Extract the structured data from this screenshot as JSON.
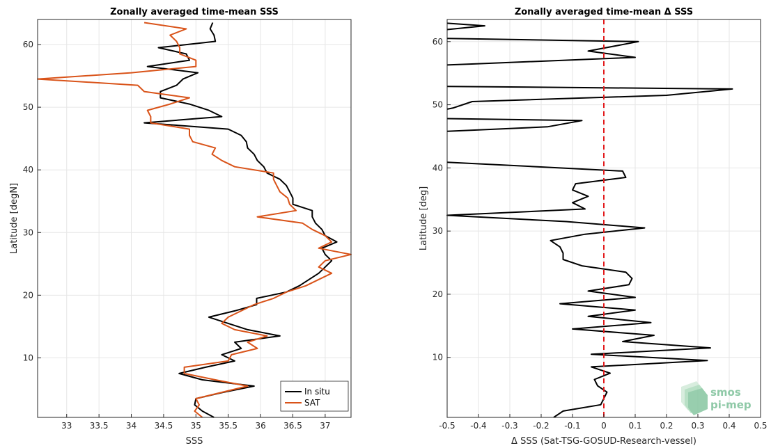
{
  "colors": {
    "insitu": "#000000",
    "sat": "#d95319",
    "zero_line": "#e31a1c",
    "grid": "#e6e6e6",
    "axis": "#262626",
    "logo": "#8fc9a7"
  },
  "logo": {
    "line1": "smos",
    "line2": "pi-mep",
    "icon": "layered-sheets-icon"
  },
  "chart_data": [
    {
      "type": "line",
      "title": "Zonally averaged time-mean SSS",
      "xlabel": "SSS",
      "ylabel": "Latitude [degN]",
      "xlim": [
        32.55,
        37.4
      ],
      "ylim": [
        0.5,
        64
      ],
      "xticks": [
        33,
        33.5,
        34,
        34.5,
        35,
        35.5,
        36,
        36.5,
        37
      ],
      "xtick_labels": [
        "33",
        "33.5",
        "34",
        "34.5",
        "35",
        "35.5",
        "36",
        "36.5",
        "37"
      ],
      "yticks": [
        10,
        20,
        30,
        40,
        50,
        60
      ],
      "ytick_labels": [
        "10",
        "20",
        "30",
        "40",
        "50",
        "60"
      ],
      "grid": true,
      "legend_position": "bottom-right",
      "series": [
        {
          "name": "In situ",
          "color_key": "insitu",
          "points": [
            [
              35.28,
              0.5
            ],
            [
              35.1,
              1.5
            ],
            [
              34.98,
              2.5
            ],
            [
              35.0,
              3.5
            ],
            [
              35.42,
              4.5
            ],
            [
              35.9,
              5.5
            ],
            [
              35.1,
              6.5
            ],
            [
              34.74,
              7.5
            ],
            [
              35.15,
              8.5
            ],
            [
              35.6,
              9.5
            ],
            [
              35.4,
              10.5
            ],
            [
              35.7,
              11.5
            ],
            [
              35.6,
              12.5
            ],
            [
              36.3,
              13.5
            ],
            [
              35.8,
              14.5
            ],
            [
              35.5,
              15.5
            ],
            [
              35.2,
              16.5
            ],
            [
              35.6,
              17.5
            ],
            [
              35.94,
              18.5
            ],
            [
              35.94,
              19.5
            ],
            [
              36.4,
              20.5
            ],
            [
              36.6,
              21.5
            ],
            [
              36.75,
              22.5
            ],
            [
              36.9,
              23.5
            ],
            [
              37.0,
              24.5
            ],
            [
              37.1,
              25.5
            ],
            [
              37.0,
              26.5
            ],
            [
              36.95,
              27.5
            ],
            [
              37.18,
              28.5
            ],
            [
              37.0,
              29.5
            ],
            [
              36.95,
              30.5
            ],
            [
              36.85,
              31.5
            ],
            [
              36.8,
              32.5
            ],
            [
              36.8,
              33.5
            ],
            [
              36.5,
              34.5
            ],
            [
              36.5,
              35.5
            ],
            [
              36.45,
              36.5
            ],
            [
              36.4,
              37.5
            ],
            [
              36.3,
              38.5
            ],
            [
              36.1,
              39.5
            ],
            [
              36.05,
              40.5
            ],
            [
              35.95,
              41.5
            ],
            [
              35.9,
              42.5
            ],
            [
              35.8,
              43.5
            ],
            [
              35.78,
              44.5
            ],
            [
              35.7,
              45.5
            ],
            [
              35.5,
              46.5
            ],
            [
              34.2,
              47.5
            ],
            [
              35.4,
              48.5
            ],
            [
              35.2,
              49.5
            ],
            [
              34.9,
              50.5
            ],
            [
              34.45,
              51.5
            ],
            [
              34.45,
              52.5
            ],
            [
              34.7,
              53.5
            ],
            [
              34.8,
              54.5
            ],
            [
              35.03,
              55.5
            ],
            [
              34.25,
              56.5
            ],
            [
              34.9,
              57.5
            ],
            [
              34.85,
              58.5
            ],
            [
              34.42,
              59.5
            ],
            [
              35.3,
              60.5
            ],
            [
              35.28,
              61.5
            ],
            [
              35.22,
              62.5
            ],
            [
              35.26,
              63.5
            ]
          ]
        },
        {
          "name": "SAT",
          "color_key": "sat",
          "points": [
            [
              35.1,
              0.5
            ],
            [
              34.98,
              1.5
            ],
            [
              35.05,
              2.5
            ],
            [
              35.0,
              3.5
            ],
            [
              35.4,
              4.5
            ],
            [
              35.8,
              5.5
            ],
            [
              35.3,
              6.5
            ],
            [
              34.82,
              7.5
            ],
            [
              34.82,
              8.5
            ],
            [
              35.5,
              9.5
            ],
            [
              35.55,
              10.5
            ],
            [
              35.95,
              11.5
            ],
            [
              35.8,
              12.5
            ],
            [
              36.1,
              13.5
            ],
            [
              35.6,
              14.5
            ],
            [
              35.4,
              15.5
            ],
            [
              35.5,
              16.5
            ],
            [
              35.7,
              17.5
            ],
            [
              35.9,
              18.5
            ],
            [
              36.2,
              19.5
            ],
            [
              36.4,
              20.5
            ],
            [
              36.7,
              21.5
            ],
            [
              36.9,
              22.5
            ],
            [
              37.1,
              23.5
            ],
            [
              36.9,
              24.5
            ],
            [
              37.0,
              25.5
            ],
            [
              37.4,
              26.5
            ],
            [
              36.9,
              27.5
            ],
            [
              37.1,
              28.5
            ],
            [
              37.0,
              29.5
            ],
            [
              36.8,
              30.5
            ],
            [
              36.65,
              31.5
            ],
            [
              35.95,
              32.5
            ],
            [
              36.55,
              33.5
            ],
            [
              36.45,
              34.5
            ],
            [
              36.42,
              35.5
            ],
            [
              36.3,
              36.5
            ],
            [
              36.25,
              37.5
            ],
            [
              36.2,
              38.5
            ],
            [
              36.2,
              39.5
            ],
            [
              35.6,
              40.5
            ],
            [
              35.4,
              41.5
            ],
            [
              35.25,
              42.5
            ],
            [
              35.3,
              43.5
            ],
            [
              34.95,
              44.5
            ],
            [
              34.9,
              45.5
            ],
            [
              34.9,
              46.5
            ],
            [
              34.3,
              47.5
            ],
            [
              34.3,
              48.5
            ],
            [
              34.25,
              49.5
            ],
            [
              34.6,
              50.5
            ],
            [
              34.9,
              51.5
            ],
            [
              34.2,
              52.5
            ],
            [
              34.1,
              53.5
            ],
            [
              32.55,
              54.5
            ],
            [
              34.0,
              55.5
            ],
            [
              35.0,
              56.5
            ],
            [
              35.0,
              57.5
            ],
            [
              34.75,
              58.5
            ],
            [
              34.75,
              59.5
            ],
            [
              34.7,
              60.5
            ],
            [
              34.6,
              61.5
            ],
            [
              34.85,
              62.5
            ],
            [
              34.2,
              63.5
            ]
          ]
        }
      ]
    },
    {
      "type": "line",
      "title": "Zonally averaged time-mean Δ SSS",
      "xlabel": "Δ SSS (Sat-TSG-GOSUD-Research-vessel)",
      "ylabel": "Latitude [deg]",
      "xlim": [
        -0.5,
        0.5
      ],
      "ylim": [
        0.5,
        63.5
      ],
      "xticks": [
        -0.5,
        -0.4,
        -0.3,
        -0.2,
        -0.1,
        0,
        0.1,
        0.2,
        0.3,
        0.4,
        0.5
      ],
      "xtick_labels": [
        "-0.5",
        "-0.4",
        "-0.3",
        "-0.2",
        "-0.1",
        "0",
        "0.1",
        "0.2",
        "0.3",
        "0.4",
        "0.5"
      ],
      "yticks": [
        10,
        20,
        30,
        40,
        50,
        60
      ],
      "ytick_labels": [
        "10",
        "20",
        "30",
        "40",
        "50",
        "60"
      ],
      "grid": true,
      "reference_line": {
        "x": 0,
        "style": "dashed",
        "color_key": "zero_line"
      },
      "series": [
        {
          "color_key": "insitu",
          "segments": [
            [
              [
                -0.16,
                0.5
              ],
              [
                -0.13,
                1.5
              ],
              [
                -0.01,
                2.5
              ],
              [
                0.0,
                3.5
              ],
              [
                0.01,
                4.5
              ],
              [
                -0.02,
                5.5
              ],
              [
                -0.03,
                6.5
              ],
              [
                0.02,
                7.5
              ],
              [
                -0.04,
                8.5
              ],
              [
                0.33,
                9.5
              ],
              [
                -0.04,
                10.5
              ],
              [
                0.34,
                11.5
              ],
              [
                0.06,
                12.5
              ],
              [
                0.16,
                13.5
              ],
              [
                -0.1,
                14.5
              ],
              [
                0.15,
                15.5
              ],
              [
                -0.05,
                16.5
              ],
              [
                0.1,
                17.5
              ],
              [
                -0.14,
                18.5
              ],
              [
                0.1,
                19.5
              ],
              [
                -0.05,
                20.5
              ],
              [
                0.08,
                21.5
              ],
              [
                0.09,
                22.5
              ],
              [
                0.07,
                23.5
              ],
              [
                -0.07,
                24.5
              ],
              [
                -0.13,
                25.5
              ],
              [
                -0.13,
                26.5
              ],
              [
                -0.14,
                27.5
              ],
              [
                -0.17,
                28.5
              ],
              [
                -0.06,
                29.5
              ],
              [
                0.13,
                30.5
              ],
              [
                -0.12,
                31.5
              ],
              [
                -0.5,
                32.5
              ],
              [
                -0.06,
                33.5
              ],
              [
                -0.1,
                34.5
              ],
              [
                -0.05,
                35.5
              ],
              [
                -0.1,
                36.5
              ],
              [
                -0.09,
                37.5
              ],
              [
                0.07,
                38.5
              ],
              [
                0.06,
                39.5
              ],
              [
                -0.5,
                40.9
              ]
            ],
            [
              [
                -0.5,
                45.8
              ],
              [
                -0.18,
                46.5
              ],
              [
                -0.07,
                47.5
              ],
              [
                -0.5,
                47.8
              ]
            ],
            [
              [
                -0.5,
                49.3
              ],
              [
                -0.48,
                49.5
              ],
              [
                -0.42,
                50.5
              ],
              [
                0.2,
                51.5
              ],
              [
                0.41,
                52.5
              ],
              [
                -0.5,
                52.9
              ]
            ],
            [
              [
                -0.5,
                56.3
              ],
              [
                -0.4,
                56.5
              ],
              [
                0.1,
                57.5
              ],
              [
                -0.05,
                58.5
              ],
              [
                0.11,
                60.0
              ],
              [
                -0.5,
                60.5
              ]
            ],
            [
              [
                -0.5,
                61.9
              ],
              [
                -0.38,
                62.5
              ],
              [
                -0.5,
                62.9
              ]
            ]
          ]
        }
      ]
    }
  ]
}
